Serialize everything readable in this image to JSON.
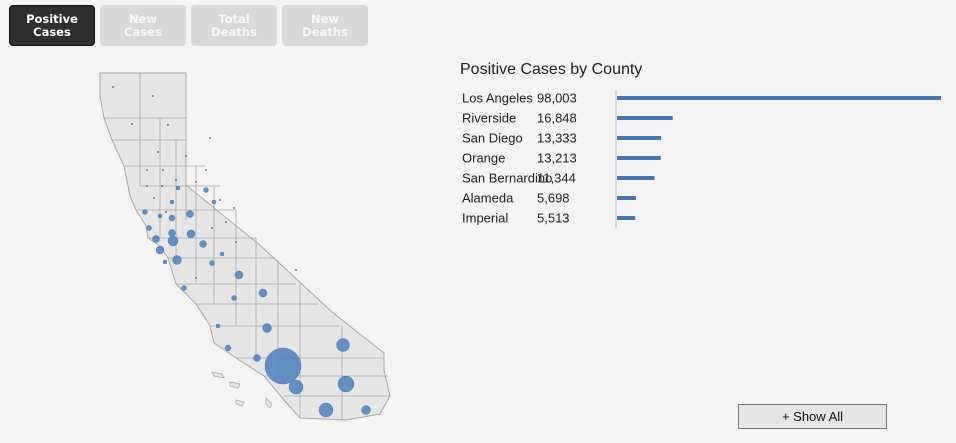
{
  "tabs": [
    {
      "label": "Positive\nCases",
      "active": true
    },
    {
      "label": "New\nCases",
      "active": false
    },
    {
      "label": "Total\nDeaths",
      "active": false
    },
    {
      "label": "New\nDeaths",
      "active": false
    }
  ],
  "map_colors": {
    "fill": "#e6e6e6",
    "stroke": "#a9a9a9",
    "bubble": "#4e7fb8"
  },
  "chart_data": {
    "type": "bar",
    "orientation": "horizontal",
    "title": "Positive Cases by County",
    "categories": [
      "Los Angeles",
      "Riverside",
      "San Diego",
      "Orange",
      "San Bernardino",
      "Alameda",
      "Imperial"
    ],
    "value_labels": [
      "98,003",
      "16,848",
      "13,333",
      "13,213",
      "11,344",
      "5,698",
      "5,513"
    ],
    "values": [
      98003,
      16848,
      13333,
      13213,
      11344,
      5698,
      5513
    ],
    "bar_color": "#4a76b0",
    "xlim": [
      0,
      98003
    ]
  },
  "show_all_label": "+ Show All"
}
